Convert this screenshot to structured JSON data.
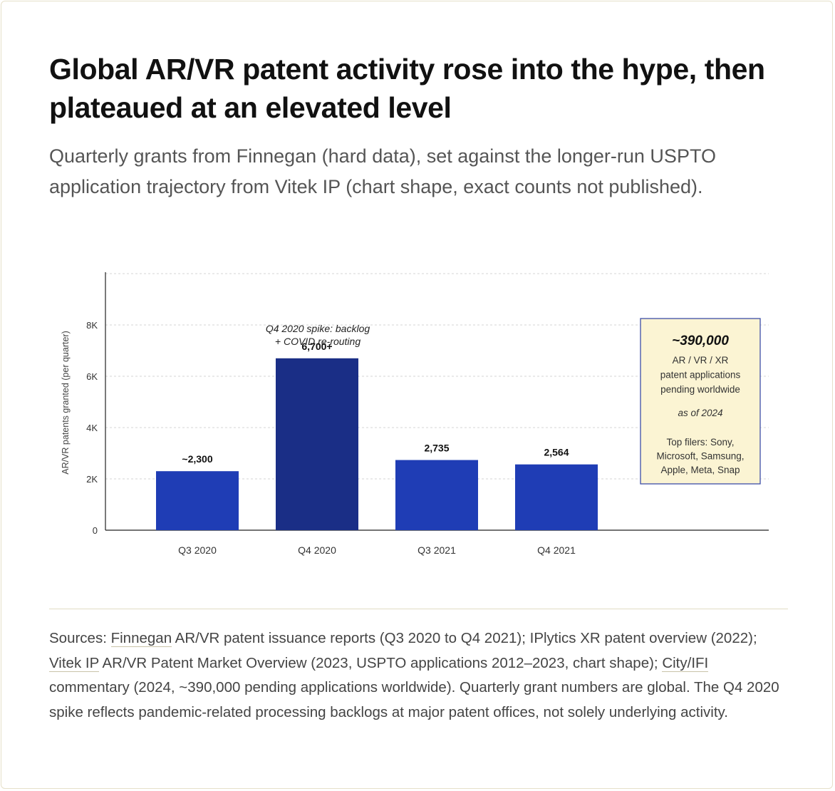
{
  "title": "Global AR/VR patent activity rose into the hype, then plateaued at an elevated level",
  "subtitle": "Quarterly grants from Finnegan (hard data), set against the longer-run USPTO application trajectory from Vitek IP (chart shape, exact counts not published).",
  "colors": {
    "bar": "#1f3db5",
    "bar_highlight": "#1a2e86",
    "note_bg": "#fbf4d3",
    "note_border": "#3d4fa8"
  },
  "chart_data": {
    "type": "bar",
    "categories": [
      "Q3 2020",
      "Q4 2020",
      "Q3 2021",
      "Q4 2021"
    ],
    "values": [
      2300,
      6700,
      2735,
      2564
    ],
    "value_labels": [
      "~2,300",
      "6,700+",
      "2,735",
      "2,564"
    ],
    "highlight_index": 1,
    "ylabel": "AR/VR patents granted (per quarter)",
    "ylim": [
      0,
      10000
    ],
    "yticks": [
      0,
      2000,
      4000,
      6000,
      8000
    ],
    "ytick_labels": [
      "0",
      "2K",
      "4K",
      "6K",
      "8K"
    ],
    "grid": true,
    "annotation": {
      "lines": [
        "Q4 2020 spike: backlog",
        "+ COVID re-routing"
      ]
    },
    "callout": {
      "headline": "~390,000",
      "lines": [
        "AR / VR / XR",
        "patent applications",
        "pending worldwide"
      ],
      "date": "as of 2024",
      "filers": [
        "Top filers: Sony,",
        "Microsoft, Samsung,",
        "Apple, Meta, Snap"
      ]
    }
  },
  "sources": {
    "prefix": "Sources: ",
    "link1": "Finnegan",
    "text1": " AR/VR patent issuance reports (Q3 2020 to Q4 2021); IPlytics XR patent overview (2022); ",
    "link2": "Vitek IP",
    "text2": " AR/VR Patent Market Overview (2023, USPTO applications 2012–2023, chart shape); ",
    "link3": "City/IFI",
    "text3": " commentary (2024, ~390,000 pending applications worldwide). Quarterly grant numbers are global. The Q4 2020 spike reflects pandemic-related processing backlogs at major patent offices, not solely underlying activity."
  }
}
